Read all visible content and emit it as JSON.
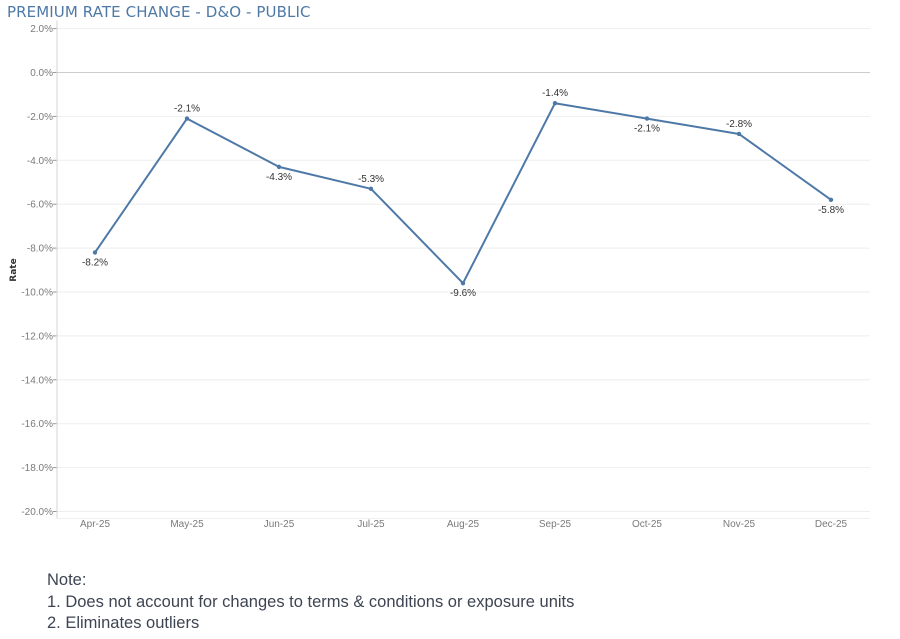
{
  "chart_data": {
    "type": "line",
    "title": "PREMIUM RATE CHANGE - D&O - PUBLIC",
    "ylabel": "Rate",
    "xlabel": "",
    "categories": [
      "Apr-25",
      "May-25",
      "Jun-25",
      "Jul-25",
      "Aug-25",
      "Sep-25",
      "Oct-25",
      "Nov-25",
      "Dec-25"
    ],
    "series": [
      {
        "values": [
          -8.2,
          -2.1,
          -4.3,
          -5.3,
          -9.6,
          -1.4,
          -2.1,
          -2.8,
          -5.8
        ],
        "labels": [
          "-8.2%",
          "-2.1%",
          "-4.3%",
          "-5.3%",
          "-9.6%",
          "-1.4%",
          "-2.1%",
          "-2.8%",
          "-5.8%"
        ],
        "label_position": [
          "below",
          "above",
          "below",
          "above",
          "below",
          "above",
          "below",
          "above",
          "below"
        ]
      }
    ],
    "yticks": [
      2,
      0,
      -2,
      -4,
      -6,
      -8,
      -10,
      -12,
      -14,
      -16,
      -18,
      -20
    ],
    "ytick_labels": [
      "2.0%",
      "0.0%",
      "-2.0%",
      "-4.0%",
      "-6.0%",
      "-8.0%",
      "-10.0%",
      "-12.0%",
      "-14.0%",
      "-16.0%",
      "-18.0%",
      "-20.0%"
    ],
    "ylim": [
      -20,
      2
    ],
    "grid": true,
    "zero_line": true,
    "legend": "none",
    "colors": {
      "line": "#4e79a7",
      "grid": "#eeeeee",
      "zero_line": "#cccccc"
    }
  },
  "notes": {
    "heading": "Note:",
    "items": [
      "1. Does not account for changes to terms & conditions or exposure units",
      "2. Eliminates outliers"
    ]
  }
}
